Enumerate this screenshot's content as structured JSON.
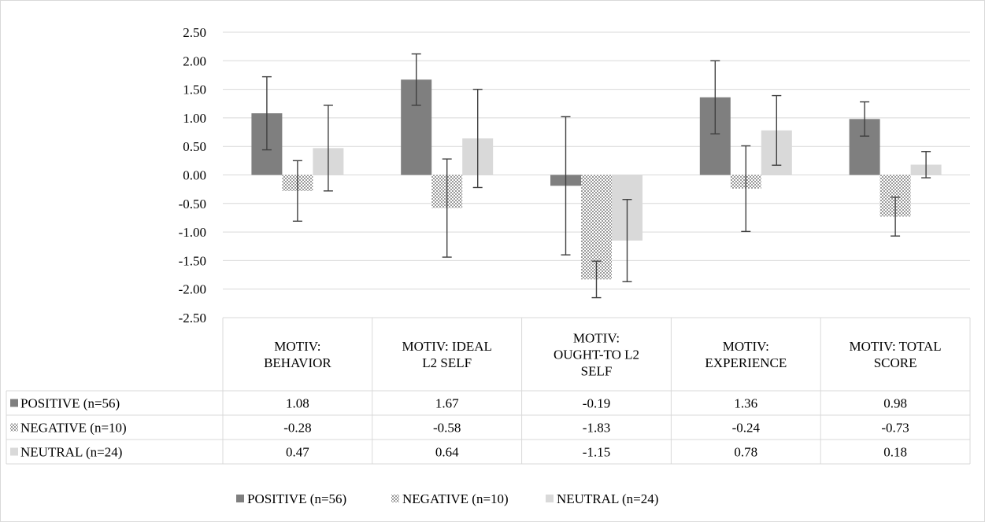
{
  "chart_data": {
    "type": "bar",
    "title": "",
    "xlabel": "",
    "ylabel": "",
    "ylim": [
      -2.5,
      2.5
    ],
    "y_ticks": [
      "2.50",
      "2.00",
      "1.50",
      "1.00",
      "0.50",
      "0.00",
      "-0.50",
      "-1.00",
      "-1.50",
      "-2.00",
      "-2.50"
    ],
    "grid": true,
    "legend_position": "bottom",
    "has_data_table": true,
    "categories": [
      [
        "MOTIV:",
        "BEHAVIOR"
      ],
      [
        "MOTIV: IDEAL",
        "L2 SELF"
      ],
      [
        "MOTIV:",
        "OUGHT-TO L2",
        "SELF"
      ],
      [
        "MOTIV:",
        "EXPERIENCE"
      ],
      [
        "MOTIV: TOTAL",
        "SCORE"
      ]
    ],
    "series": [
      {
        "name": "POSITIVE (n=56)",
        "color": "#7f7f7f",
        "pattern": "solid",
        "values": [
          1.08,
          1.67,
          -0.19,
          1.36,
          0.98
        ],
        "labels": [
          "1.08",
          "1.67",
          "-0.19",
          "1.36",
          "0.98"
        ],
        "error": [
          0.64,
          0.45,
          1.21,
          0.64,
          0.3
        ]
      },
      {
        "name": "NEGATIVE (n=10)",
        "color": "#a6a6a6",
        "pattern": "checker",
        "values": [
          -0.28,
          -0.58,
          -1.83,
          -0.24,
          -0.73
        ],
        "labels": [
          "-0.28",
          "-0.58",
          "-1.83",
          "-0.24",
          "-0.73"
        ],
        "error": [
          0.53,
          0.86,
          0.32,
          0.75,
          0.34
        ]
      },
      {
        "name": "NEUTRAL (n=24)",
        "color": "#d9d9d9",
        "pattern": "solid",
        "values": [
          0.47,
          0.64,
          -1.15,
          0.78,
          0.18
        ],
        "labels": [
          "0.47",
          "0.64",
          "-1.15",
          "0.78",
          "0.18"
        ],
        "error": [
          0.75,
          0.86,
          0.72,
          0.61,
          0.23
        ]
      }
    ]
  }
}
